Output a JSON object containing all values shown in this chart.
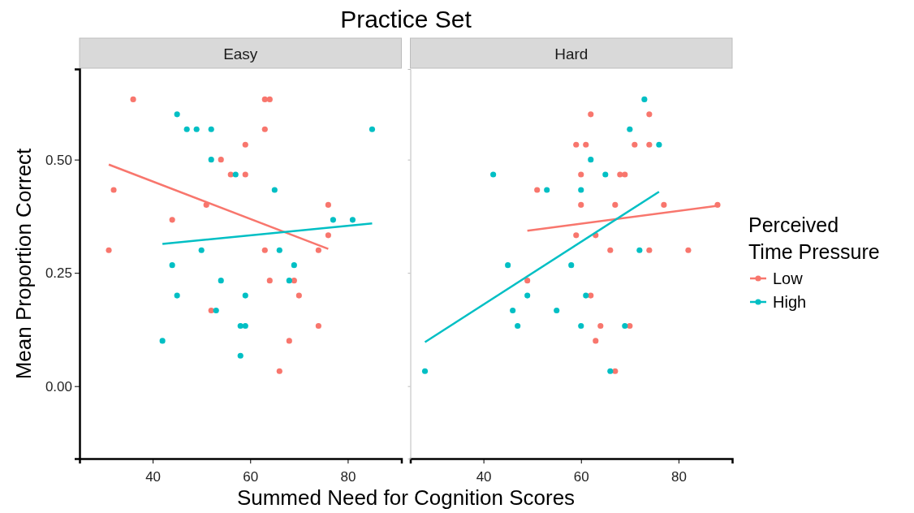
{
  "chart_data": [
    {
      "type": "scatter",
      "title": "Practice Set",
      "subtitle": "Easy",
      "xlabel": "Summed Need for Cognition Scores",
      "ylabel": "Mean Proportion Correct",
      "xlim": [
        25,
        91
      ],
      "ylim": [
        -0.16,
        0.7
      ],
      "xticks": [
        40,
        60,
        80
      ],
      "yticks": [
        {
          "value": 0,
          "label": "0.00"
        },
        {
          "value": 0.25,
          "label": "0.25"
        },
        {
          "value": 0.5,
          "label": "0.50"
        }
      ],
      "series": [
        {
          "marker": "circle",
          "color": "#f8766d",
          "x": [
            36,
            63,
            64,
            63,
            59,
            54,
            56,
            59,
            32,
            51,
            76,
            44,
            76,
            31,
            63,
            74,
            64,
            69,
            70,
            52,
            74,
            68,
            66
          ],
          "values": [
            0.633,
            0.633,
            0.633,
            0.567,
            0.533,
            0.5,
            0.467,
            0.467,
            0.433,
            0.4,
            0.4,
            0.367,
            0.333,
            0.3,
            0.3,
            0.3,
            0.233,
            0.233,
            0.2,
            0.167,
            0.133,
            0.1,
            0.033
          ]
        },
        {
          "marker": "circle",
          "color": "#00bfc4",
          "x": [
            45,
            47,
            49,
            52,
            85,
            52,
            57,
            65,
            77,
            81,
            50,
            66,
            44,
            69,
            54,
            68,
            45,
            59,
            53,
            58,
            59,
            42,
            58
          ],
          "values": [
            0.6,
            0.567,
            0.567,
            0.567,
            0.567,
            0.5,
            0.467,
            0.433,
            0.367,
            0.367,
            0.3,
            0.3,
            0.267,
            0.267,
            0.233,
            0.233,
            0.2,
            0.2,
            0.167,
            0.133,
            0.133,
            0.1,
            0.067
          ]
        },
        {
          "type": "line",
          "color": "#f8766d",
          "x": [
            31,
            76
          ],
          "values": [
            0.489,
            0.303
          ]
        },
        {
          "type": "line",
          "color": "#00bfc4",
          "x": [
            42,
            85
          ],
          "values": [
            0.314,
            0.359
          ]
        }
      ]
    },
    {
      "type": "scatter",
      "subtitle": "Hard",
      "legend_title": "Perceived Time Pressure",
      "legend": "right",
      "tick_labels": "x",
      "xlim": [
        25,
        91
      ],
      "ylim": [
        -0.16,
        0.7
      ],
      "xticks": [
        40,
        60,
        80
      ],
      "yticks": [
        {
          "value": 0,
          "label": null
        },
        {
          "value": 0.25,
          "label": null
        },
        {
          "value": 0.5,
          "label": null
        }
      ],
      "series": [
        {
          "name": "Low",
          "marker": "circle",
          "color": "#f8766d",
          "x": [
            62,
            74,
            59,
            61,
            71,
            74,
            60,
            68,
            69,
            51,
            60,
            67,
            77,
            88,
            59,
            63,
            66,
            74,
            82,
            49,
            62,
            64,
            70,
            63,
            67
          ],
          "values": [
            0.6,
            0.6,
            0.533,
            0.533,
            0.533,
            0.533,
            0.467,
            0.467,
            0.467,
            0.433,
            0.4,
            0.4,
            0.4,
            0.4,
            0.333,
            0.333,
            0.3,
            0.3,
            0.3,
            0.233,
            0.2,
            0.133,
            0.133,
            0.1,
            0.033
          ]
        },
        {
          "name": "High",
          "marker": "circle",
          "color": "#00bfc4",
          "x": [
            73,
            70,
            76,
            62,
            42,
            65,
            53,
            60,
            72,
            45,
            58,
            49,
            61,
            46,
            55,
            47,
            60,
            69,
            66,
            28
          ],
          "values": [
            0.633,
            0.567,
            0.533,
            0.5,
            0.467,
            0.467,
            0.433,
            0.433,
            0.3,
            0.267,
            0.267,
            0.2,
            0.2,
            0.167,
            0.167,
            0.133,
            0.133,
            0.133,
            0.033,
            0.033
          ]
        },
        {
          "type": "line",
          "color": "#f8766d",
          "x": [
            49,
            88
          ],
          "values": [
            0.343,
            0.398
          ]
        },
        {
          "type": "line",
          "color": "#00bfc4",
          "x": [
            28,
            76
          ],
          "values": [
            0.097,
            0.429
          ]
        }
      ]
    }
  ]
}
